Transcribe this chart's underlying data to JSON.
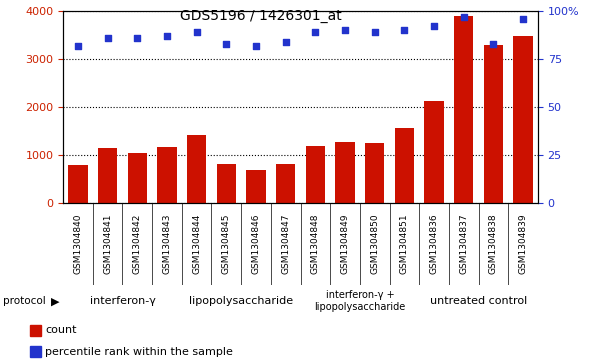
{
  "title": "GDS5196 / 1426301_at",
  "samples": [
    "GSM1304840",
    "GSM1304841",
    "GSM1304842",
    "GSM1304843",
    "GSM1304844",
    "GSM1304845",
    "GSM1304846",
    "GSM1304847",
    "GSM1304848",
    "GSM1304849",
    "GSM1304850",
    "GSM1304851",
    "GSM1304836",
    "GSM1304837",
    "GSM1304838",
    "GSM1304839"
  ],
  "counts": [
    800,
    1150,
    1040,
    1160,
    1430,
    820,
    700,
    820,
    1190,
    1270,
    1260,
    1560,
    2130,
    3900,
    3300,
    3480
  ],
  "percentiles": [
    82,
    86,
    86,
    87,
    89,
    83,
    82,
    84,
    89,
    90,
    89,
    90,
    92,
    97,
    83,
    96
  ],
  "groups": [
    {
      "label": "interferon-γ",
      "start": 0,
      "end": 4,
      "color": "#ccffcc"
    },
    {
      "label": "lipopolysaccharide",
      "start": 4,
      "end": 8,
      "color": "#88ee88"
    },
    {
      "label": "interferon-γ +\nlipopolysaccharide",
      "start": 8,
      "end": 12,
      "color": "#ccffcc"
    },
    {
      "label": "untreated control",
      "start": 12,
      "end": 16,
      "color": "#44dd44"
    }
  ],
  "ylim_left": [
    0,
    4000
  ],
  "ylim_right": [
    0,
    100
  ],
  "yticks_left": [
    0,
    1000,
    2000,
    3000,
    4000
  ],
  "yticks_right": [
    0,
    25,
    50,
    75,
    100
  ],
  "bar_color": "#cc1100",
  "dot_color": "#2233cc",
  "bg_color": "#ffffff",
  "plot_bg": "#ffffff",
  "tick_label_color_left": "#cc2200",
  "tick_label_color_right": "#2233cc",
  "legend_count": "count",
  "legend_pct": "percentile rank within the sample",
  "xtick_bg_color": "#d0d0d0",
  "group_border_color": "#000000"
}
